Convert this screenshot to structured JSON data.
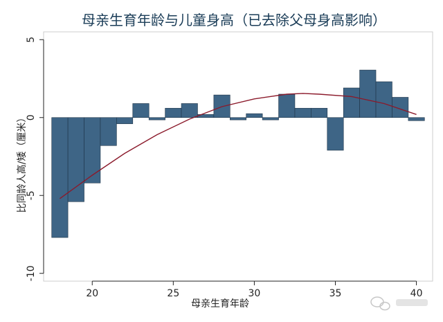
{
  "chart_data": {
    "type": "bar",
    "title": "母亲生育年龄与儿童身高（已去除父母身高影响）",
    "xlabel": "母亲生育年龄",
    "ylabel": "比同龄人高/矮（厘米）",
    "xlim": [
      17,
      41
    ],
    "ylim": [
      -10.5,
      5.5
    ],
    "x_ticks": [
      20,
      25,
      30,
      35,
      40
    ],
    "y_ticks": [
      5,
      0,
      -5,
      -10
    ],
    "x_tick_labels": [
      "20",
      "25",
      "30",
      "35",
      "40"
    ],
    "y_tick_labels": [
      "5",
      "0",
      "-5",
      "-10"
    ],
    "grid": false,
    "bar_color": "#3e6586",
    "curve_color": "#8b1a2b",
    "bars": [
      {
        "x": 18,
        "value": -7.7
      },
      {
        "x": 19,
        "value": -5.4
      },
      {
        "x": 20,
        "value": -4.2
      },
      {
        "x": 21,
        "value": -1.8
      },
      {
        "x": 22,
        "value": -0.4
      },
      {
        "x": 23,
        "value": 0.9
      },
      {
        "x": 24,
        "value": -0.15
      },
      {
        "x": 25,
        "value": 0.6
      },
      {
        "x": 26,
        "value": 0.9
      },
      {
        "x": 27,
        "value": 0.2
      },
      {
        "x": 28,
        "value": 1.45
      },
      {
        "x": 29,
        "value": -0.15
      },
      {
        "x": 30,
        "value": 0.25
      },
      {
        "x": 31,
        "value": -0.15
      },
      {
        "x": 32,
        "value": 1.5
      },
      {
        "x": 33,
        "value": 0.6
      },
      {
        "x": 34,
        "value": 0.6
      },
      {
        "x": 35,
        "value": -2.1
      },
      {
        "x": 36,
        "value": 1.9
      },
      {
        "x": 37,
        "value": 3.05
      },
      {
        "x": 38,
        "value": 2.3
      },
      {
        "x": 39,
        "value": 1.3
      },
      {
        "x": 40,
        "value": -0.2
      }
    ],
    "fit_curve": {
      "type": "quadratic",
      "points": [
        {
          "x": 18,
          "y": -5.2
        },
        {
          "x": 20,
          "y": -3.7
        },
        {
          "x": 22,
          "y": -2.3
        },
        {
          "x": 24,
          "y": -1.1
        },
        {
          "x": 26,
          "y": -0.1
        },
        {
          "x": 28,
          "y": 0.7
        },
        {
          "x": 30,
          "y": 1.2
        },
        {
          "x": 32,
          "y": 1.5
        },
        {
          "x": 33,
          "y": 1.55
        },
        {
          "x": 34,
          "y": 1.5
        },
        {
          "x": 36,
          "y": 1.35
        },
        {
          "x": 38,
          "y": 0.9
        },
        {
          "x": 40,
          "y": 0.2
        }
      ]
    }
  }
}
